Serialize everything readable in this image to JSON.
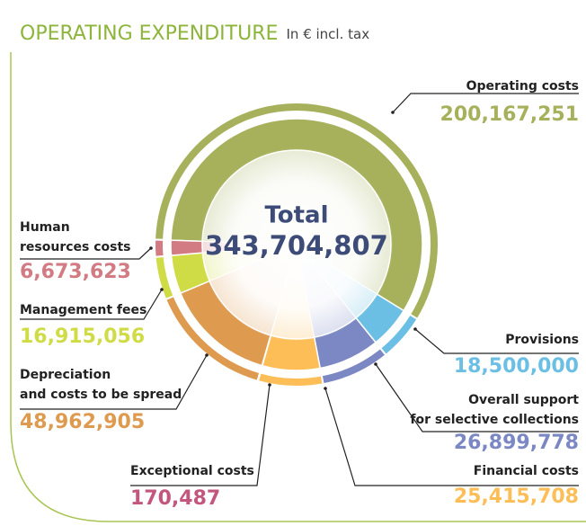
{
  "chart_data": {
    "type": "pie",
    "title": "OPERATING EXPENDITURE",
    "subtitle": "In € incl. tax",
    "center_title": "Total",
    "total": 343704807,
    "total_label": "343,704,807",
    "categories": [
      "Operating costs",
      "Provisions",
      "Overall support\nfor selective collections",
      "Financial costs",
      "Exceptional costs",
      "Depreciation\nand costs to be spread",
      "Management fees",
      "Human\nresources costs"
    ],
    "values": [
      200167251,
      18500000,
      26899778,
      25415708,
      170487,
      48962905,
      16915056,
      6673623
    ],
    "value_labels": [
      "200,167,251",
      "18,500,000",
      "26,899,778",
      "25,415,708",
      "170,487",
      "48,962,905",
      "16,915,056",
      "6,673,623"
    ],
    "colors": [
      "#a7b15c",
      "#6cbfe4",
      "#7b88c3",
      "#fdbe58",
      "#c2567c",
      "#de9b50",
      "#cfdc46",
      "#d27b82"
    ]
  }
}
